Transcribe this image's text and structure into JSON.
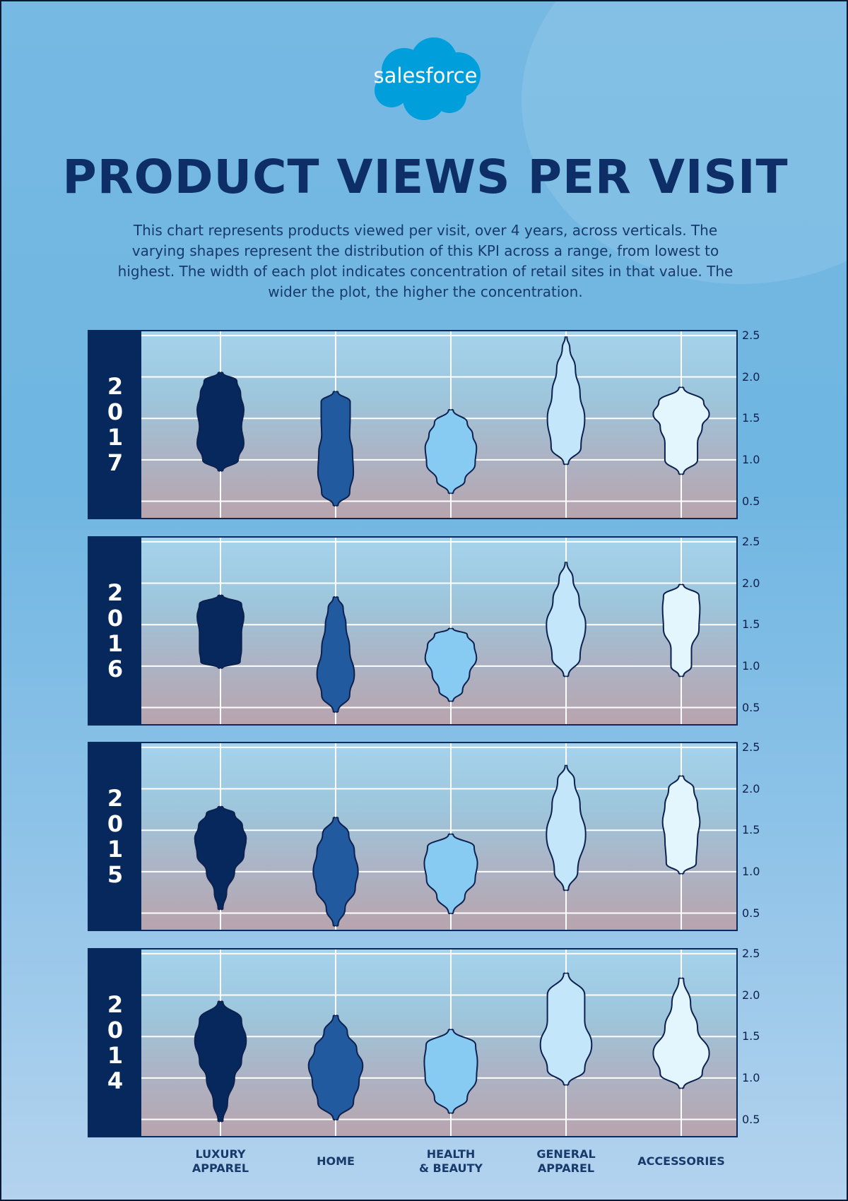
{
  "logo": {
    "text": "salesforce",
    "icon": "salesforce-cloud-logo",
    "color": "#009edb"
  },
  "title": "PRODUCT VIEWS PER VISIT",
  "description": "This chart represents products viewed per visit, over 4 years, across verticals. The varying shapes represent the distribution of this KPI across a range, from lowest to highest. The width of each plot indicates concentration of retail sites in that value. The wider the plot, the higher the concentration.",
  "colors": {
    "title": "#0d2e66",
    "year_bar": "#06285c",
    "LUXURY APPAREL": "#06285c",
    "HOME": "#215a9e",
    "HEALTH & BEAUTY": "#88cbf2",
    "GENERAL APPAREL": "#c3e6fb",
    "ACCESSORIES": "#e3f5fd"
  },
  "chart_data": {
    "type": "violin",
    "categories": [
      "LUXURY APPAREL",
      "HOME",
      "HEALTH & BEAUTY",
      "GENERAL APPAREL",
      "ACCESSORIES"
    ],
    "y_ticks": [
      "2.5",
      "2.0",
      "1.5",
      "1.0",
      "0.5"
    ],
    "ylim": [
      0.3,
      2.55
    ],
    "grid": true,
    "panels": [
      {
        "year": "2017",
        "violins": [
          {
            "category": "LUXURY APPAREL",
            "min": 0.87,
            "max": 2.05,
            "profile": [
              [
                0.87,
                0.05
              ],
              [
                1.0,
                0.38
              ],
              [
                1.2,
                0.5
              ],
              [
                1.4,
                0.45
              ],
              [
                1.6,
                0.5
              ],
              [
                1.8,
                0.43
              ],
              [
                1.95,
                0.35
              ],
              [
                2.05,
                0.05
              ]
            ]
          },
          {
            "category": "HOME",
            "min": 0.45,
            "max": 1.82,
            "profile": [
              [
                0.45,
                0.05
              ],
              [
                0.6,
                0.3
              ],
              [
                0.85,
                0.38
              ],
              [
                1.1,
                0.36
              ],
              [
                1.3,
                0.3
              ],
              [
                1.5,
                0.31
              ],
              [
                1.7,
                0.31
              ],
              [
                1.82,
                0.05
              ]
            ]
          },
          {
            "category": "HEALTH & BEAUTY",
            "min": 0.6,
            "max": 1.6,
            "profile": [
              [
                0.6,
                0.05
              ],
              [
                0.75,
                0.3
              ],
              [
                0.95,
                0.52
              ],
              [
                1.15,
                0.55
              ],
              [
                1.3,
                0.47
              ],
              [
                1.45,
                0.35
              ],
              [
                1.6,
                0.05
              ]
            ]
          },
          {
            "category": "GENERAL APPAREL",
            "min": 0.95,
            "max": 2.48,
            "profile": [
              [
                0.95,
                0.05
              ],
              [
                1.15,
                0.32
              ],
              [
                1.5,
                0.4
              ],
              [
                1.8,
                0.3
              ],
              [
                2.1,
                0.2
              ],
              [
                2.35,
                0.08
              ],
              [
                2.48,
                0.02
              ]
            ]
          },
          {
            "category": "ACCESSORIES",
            "min": 0.83,
            "max": 1.87,
            "profile": [
              [
                0.83,
                0.05
              ],
              [
                1.0,
                0.35
              ],
              [
                1.2,
                0.35
              ],
              [
                1.4,
                0.45
              ],
              [
                1.55,
                0.6
              ],
              [
                1.7,
                0.48
              ],
              [
                1.87,
                0.05
              ]
            ]
          }
        ]
      },
      {
        "year": "2016",
        "violins": [
          {
            "category": "LUXURY APPAREL",
            "min": 0.98,
            "max": 1.85,
            "profile": [
              [
                0.98,
                0.05
              ],
              [
                1.05,
                0.42
              ],
              [
                1.2,
                0.45
              ],
              [
                1.4,
                0.45
              ],
              [
                1.6,
                0.5
              ],
              [
                1.75,
                0.45
              ],
              [
                1.85,
                0.05
              ]
            ]
          },
          {
            "category": "HOME",
            "min": 0.45,
            "max": 1.83,
            "profile": [
              [
                0.45,
                0.05
              ],
              [
                0.65,
                0.3
              ],
              [
                0.9,
                0.4
              ],
              [
                1.2,
                0.3
              ],
              [
                1.5,
                0.22
              ],
              [
                1.7,
                0.16
              ],
              [
                1.83,
                0.05
              ]
            ]
          },
          {
            "category": "HEALTH & BEAUTY",
            "min": 0.58,
            "max": 1.45,
            "profile": [
              [
                0.58,
                0.05
              ],
              [
                0.7,
                0.25
              ],
              [
                0.9,
                0.4
              ],
              [
                1.1,
                0.55
              ],
              [
                1.25,
                0.5
              ],
              [
                1.38,
                0.35
              ],
              [
                1.45,
                0.05
              ]
            ]
          },
          {
            "category": "GENERAL APPAREL",
            "min": 0.88,
            "max": 2.25,
            "profile": [
              [
                0.88,
                0.05
              ],
              [
                1.1,
                0.3
              ],
              [
                1.5,
                0.42
              ],
              [
                1.8,
                0.28
              ],
              [
                2.05,
                0.15
              ],
              [
                2.25,
                0.02
              ]
            ]
          },
          {
            "category": "ACCESSORIES",
            "min": 0.88,
            "max": 1.98,
            "profile": [
              [
                0.88,
                0.05
              ],
              [
                1.0,
                0.22
              ],
              [
                1.2,
                0.22
              ],
              [
                1.45,
                0.38
              ],
              [
                1.7,
                0.4
              ],
              [
                1.85,
                0.38
              ],
              [
                1.98,
                0.05
              ]
            ]
          }
        ]
      },
      {
        "year": "2015",
        "violins": [
          {
            "category": "LUXURY APPAREL",
            "min": 0.55,
            "max": 1.78,
            "profile": [
              [
                0.55,
                0.05
              ],
              [
                0.75,
                0.13
              ],
              [
                1.0,
                0.3
              ],
              [
                1.2,
                0.5
              ],
              [
                1.4,
                0.55
              ],
              [
                1.55,
                0.47
              ],
              [
                1.7,
                0.3
              ],
              [
                1.78,
                0.05
              ]
            ]
          },
          {
            "category": "HOME",
            "min": 0.35,
            "max": 1.65,
            "profile": [
              [
                0.35,
                0.05
              ],
              [
                0.55,
                0.2
              ],
              [
                0.8,
                0.42
              ],
              [
                1.0,
                0.48
              ],
              [
                1.25,
                0.4
              ],
              [
                1.45,
                0.28
              ],
              [
                1.65,
                0.05
              ]
            ]
          },
          {
            "category": "HEALTH & BEAUTY",
            "min": 0.5,
            "max": 1.45,
            "profile": [
              [
                0.5,
                0.05
              ],
              [
                0.7,
                0.3
              ],
              [
                0.9,
                0.52
              ],
              [
                1.1,
                0.57
              ],
              [
                1.3,
                0.5
              ],
              [
                1.45,
                0.05
              ]
            ]
          },
          {
            "category": "GENERAL APPAREL",
            "min": 0.78,
            "max": 2.28,
            "profile": [
              [
                0.78,
                0.05
              ],
              [
                1.0,
                0.25
              ],
              [
                1.45,
                0.42
              ],
              [
                1.8,
                0.3
              ],
              [
                2.1,
                0.18
              ],
              [
                2.28,
                0.02
              ]
            ]
          },
          {
            "category": "ACCESSORIES",
            "min": 0.98,
            "max": 2.15,
            "profile": [
              [
                0.98,
                0.05
              ],
              [
                1.1,
                0.32
              ],
              [
                1.4,
                0.35
              ],
              [
                1.6,
                0.4
              ],
              [
                1.8,
                0.35
              ],
              [
                2.0,
                0.27
              ],
              [
                2.15,
                0.05
              ]
            ]
          }
        ]
      },
      {
        "year": "2014",
        "violins": [
          {
            "category": "LUXURY APPAREL",
            "min": 0.48,
            "max": 1.92,
            "profile": [
              [
                0.48,
                0.05
              ],
              [
                0.7,
                0.15
              ],
              [
                1.0,
                0.3
              ],
              [
                1.2,
                0.45
              ],
              [
                1.45,
                0.55
              ],
              [
                1.7,
                0.45
              ],
              [
                1.92,
                0.05
              ]
            ]
          },
          {
            "category": "HOME",
            "min": 0.5,
            "max": 1.75,
            "profile": [
              [
                0.5,
                0.05
              ],
              [
                0.7,
                0.38
              ],
              [
                0.95,
                0.5
              ],
              [
                1.15,
                0.58
              ],
              [
                1.35,
                0.45
              ],
              [
                1.55,
                0.25
              ],
              [
                1.75,
                0.05
              ]
            ]
          },
          {
            "category": "HEALTH & BEAUTY",
            "min": 0.58,
            "max": 1.58,
            "profile": [
              [
                0.58,
                0.05
              ],
              [
                0.75,
                0.35
              ],
              [
                1.0,
                0.55
              ],
              [
                1.2,
                0.57
              ],
              [
                1.4,
                0.53
              ],
              [
                1.58,
                0.05
              ]
            ]
          },
          {
            "category": "GENERAL APPAREL",
            "min": 0.92,
            "max": 2.26,
            "profile": [
              [
                0.92,
                0.05
              ],
              [
                1.1,
                0.4
              ],
              [
                1.4,
                0.55
              ],
              [
                1.7,
                0.4
              ],
              [
                2.0,
                0.4
              ],
              [
                2.26,
                0.05
              ]
            ]
          },
          {
            "category": "ACCESSORIES",
            "min": 0.88,
            "max": 2.2,
            "profile": [
              [
                0.88,
                0.05
              ],
              [
                1.05,
                0.45
              ],
              [
                1.3,
                0.6
              ],
              [
                1.6,
                0.35
              ],
              [
                1.9,
                0.2
              ],
              [
                2.2,
                0.05
              ]
            ]
          }
        ]
      }
    ]
  }
}
